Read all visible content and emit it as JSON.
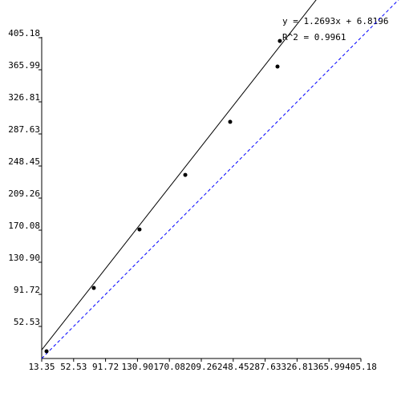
{
  "chart_data": {
    "type": "scatter",
    "series": [
      {
        "color": "#000000",
        "x": [
          19.3,
          77.3,
          133.4,
          189.6,
          244.7,
          302.8,
          305.7
        ],
        "values": [
          22.2,
          99.5,
          171.0,
          237.6,
          302.4,
          369.9,
          401.2
        ]
      }
    ],
    "xlim": [
      13.35,
      405.18
    ],
    "ylim": [
      13.35,
      405.18
    ],
    "xticks": [
      13.35,
      52.53,
      91.72,
      {
        "value": 130.9,
        "label": "130.90"
      },
      170.08,
      209.26,
      248.45,
      287.63,
      326.81,
      365.99,
      405.18
    ],
    "yticks": [
      52.53,
      91.72,
      {
        "value": 130.9,
        "label": "130.90"
      },
      170.08,
      209.26,
      248.45,
      287.63,
      326.81,
      365.99,
      405.18
    ],
    "regression": {
      "slope": 1.2693,
      "intercept": 6.8196,
      "color": "#000000",
      "label": "y = 1.2693x + 6.8196",
      "r2_label": "R^2 = 0.9961"
    },
    "identity_line": {
      "color": "#0000ff",
      "dashed": true
    }
  }
}
